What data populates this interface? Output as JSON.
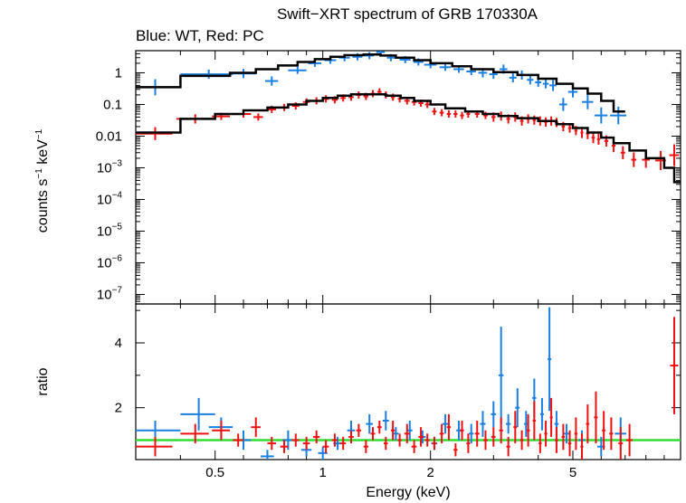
{
  "title": "Swift−XRT spectrum of GRB 170330A",
  "subtitle": "Blue: WT, Red: PC",
  "colors": {
    "wt": "#1a7fe0",
    "pc": "#ee1111",
    "model": "#000000",
    "unity": "#33dd33"
  },
  "chart_data": [
    {
      "type": "scatter",
      "panel": "spectrum",
      "ylabel_html": {
        "base": "counts s",
        "sup1": "−1",
        "mid": " keV",
        "sup2": "−1"
      },
      "xscale": "log",
      "yscale": "log",
      "xlim": [
        0.3,
        10
      ],
      "ylim": [
        5e-08,
        5
      ],
      "yticks": [
        {
          "v": 1,
          "label": "1"
        },
        {
          "v": 0.1,
          "label": "0.1"
        },
        {
          "v": 0.01,
          "label": "0.01"
        },
        {
          "v": 0.001,
          "base": "10",
          "exp": "−3"
        },
        {
          "v": 0.0001,
          "base": "10",
          "exp": "−4"
        },
        {
          "v": 1e-05,
          "base": "10",
          "exp": "−5"
        },
        {
          "v": 1e-06,
          "base": "10",
          "exp": "−6"
        },
        {
          "v": 1e-07,
          "base": "10",
          "exp": "−7"
        }
      ],
      "series": [
        {
          "key": "wt",
          "x": [
            0.34,
            0.48,
            0.6,
            0.72,
            0.85,
            0.95,
            1.05,
            1.15,
            1.25,
            1.35,
            1.45,
            1.55,
            1.7,
            1.85,
            2.0,
            2.2,
            2.4,
            2.6,
            2.8,
            3.0,
            3.2,
            3.4,
            3.6,
            3.8,
            4.0,
            4.2,
            4.4,
            4.7,
            5.0,
            5.5,
            6.0,
            6.7
          ],
          "y": [
            0.35,
            0.9,
            0.95,
            0.55,
            1.2,
            2.0,
            2.5,
            3.0,
            3.2,
            3.5,
            4.5,
            3.0,
            2.6,
            2.2,
            1.8,
            1.5,
            1.3,
            1.1,
            1.0,
            0.9,
            1.3,
            0.7,
            0.85,
            0.6,
            0.5,
            0.45,
            0.4,
            0.1,
            0.25,
            0.12,
            0.045,
            0.045
          ],
          "xerr": [
            0.06,
            0.08,
            0.05,
            0.03,
            0.05,
            0.04,
            0.04,
            0.04,
            0.04,
            0.04,
            0.04,
            0.04,
            0.06,
            0.06,
            0.08,
            0.08,
            0.08,
            0.08,
            0.08,
            0.08,
            0.08,
            0.08,
            0.08,
            0.08,
            0.08,
            0.08,
            0.1,
            0.12,
            0.15,
            0.2,
            0.25,
            0.35
          ],
          "yfac": [
            1.8,
            1.4,
            1.4,
            1.4,
            1.3,
            1.3,
            1.3,
            1.3,
            1.3,
            1.3,
            1.3,
            1.3,
            1.3,
            1.3,
            1.3,
            1.3,
            1.3,
            1.3,
            1.4,
            1.4,
            1.4,
            1.4,
            1.4,
            1.4,
            1.4,
            1.4,
            1.5,
            1.6,
            1.5,
            1.7,
            1.8,
            1.9
          ]
        },
        {
          "key": "pc",
          "x": [
            0.34,
            0.44,
            0.52,
            0.6,
            0.66,
            0.72,
            0.78,
            0.84,
            0.9,
            0.96,
            1.02,
            1.08,
            1.14,
            1.2,
            1.26,
            1.32,
            1.38,
            1.44,
            1.5,
            1.57,
            1.64,
            1.72,
            1.8,
            1.88,
            1.96,
            2.05,
            2.15,
            2.25,
            2.35,
            2.45,
            2.55,
            2.7,
            2.85,
            3.0,
            3.15,
            3.3,
            3.45,
            3.6,
            3.75,
            3.9,
            4.05,
            4.2,
            4.35,
            4.5,
            4.7,
            4.9,
            5.1,
            5.3,
            5.5,
            5.7,
            5.9,
            6.2,
            6.5,
            6.9,
            7.4,
            8.0,
            8.8,
            9.6
          ],
          "y": [
            0.012,
            0.035,
            0.042,
            0.05,
            0.04,
            0.07,
            0.08,
            0.09,
            0.12,
            0.13,
            0.15,
            0.14,
            0.16,
            0.17,
            0.2,
            0.18,
            0.22,
            0.25,
            0.2,
            0.17,
            0.15,
            0.13,
            0.12,
            0.11,
            0.1,
            0.06,
            0.055,
            0.05,
            0.05,
            0.045,
            0.05,
            0.05,
            0.045,
            0.04,
            0.043,
            0.035,
            0.04,
            0.03,
            0.035,
            0.032,
            0.03,
            0.028,
            0.03,
            0.027,
            0.02,
            0.018,
            0.015,
            0.013,
            0.012,
            0.009,
            0.008,
            0.007,
            0.005,
            0.003,
            0.0018,
            0.0018,
            0.0017,
            0.0025
          ],
          "xerr": [
            0.04,
            0.05,
            0.03,
            0.03,
            0.02,
            0.02,
            0.02,
            0.02,
            0.02,
            0.02,
            0.02,
            0.02,
            0.02,
            0.02,
            0.02,
            0.02,
            0.02,
            0.02,
            0.02,
            0.02,
            0.02,
            0.03,
            0.03,
            0.03,
            0.03,
            0.03,
            0.03,
            0.03,
            0.03,
            0.03,
            0.03,
            0.04,
            0.04,
            0.04,
            0.04,
            0.04,
            0.04,
            0.04,
            0.04,
            0.04,
            0.04,
            0.04,
            0.04,
            0.05,
            0.05,
            0.05,
            0.05,
            0.05,
            0.06,
            0.06,
            0.06,
            0.08,
            0.08,
            0.1,
            0.12,
            0.2,
            0.3,
            0.3
          ],
          "yfac": [
            1.6,
            1.4,
            1.3,
            1.3,
            1.3,
            1.3,
            1.3,
            1.3,
            1.3,
            1.3,
            1.3,
            1.3,
            1.3,
            1.3,
            1.3,
            1.3,
            1.3,
            1.3,
            1.3,
            1.3,
            1.3,
            1.3,
            1.3,
            1.3,
            1.3,
            1.3,
            1.3,
            1.3,
            1.3,
            1.3,
            1.3,
            1.3,
            1.3,
            1.4,
            1.4,
            1.4,
            1.4,
            1.4,
            1.4,
            1.4,
            1.4,
            1.4,
            1.4,
            1.4,
            1.4,
            1.4,
            1.4,
            1.5,
            1.5,
            1.5,
            1.5,
            1.5,
            1.6,
            1.6,
            1.7,
            1.8,
            2.0,
            2.2
          ]
        }
      ],
      "model_steps": [
        {
          "key": "wt",
          "edges": [
            0.3,
            0.4,
            0.55,
            0.65,
            0.75,
            0.85,
            0.95,
            1.05,
            1.15,
            1.3,
            1.45,
            1.6,
            1.8,
            2.0,
            2.3,
            2.6,
            3.0,
            3.5,
            4.0,
            4.5,
            5.0,
            5.5,
            6.0,
            6.5,
            7.0
          ],
          "values": [
            0.35,
            0.8,
            1.0,
            1.3,
            1.7,
            2.2,
            2.7,
            3.2,
            3.6,
            3.8,
            3.5,
            3.0,
            2.5,
            2.0,
            1.6,
            1.3,
            1.05,
            0.85,
            0.65,
            0.45,
            0.32,
            0.22,
            0.13,
            0.06
          ]
        },
        {
          "key": "pc",
          "edges": [
            0.3,
            0.4,
            0.5,
            0.6,
            0.7,
            0.8,
            0.9,
            1.0,
            1.1,
            1.2,
            1.35,
            1.5,
            1.65,
            1.8,
            2.0,
            2.2,
            2.5,
            2.8,
            3.1,
            3.5,
            4.0,
            4.5,
            5.0,
            5.5,
            6.0,
            6.5,
            7.2,
            8.0,
            9.0,
            9.6,
            10
          ],
          "values": [
            0.013,
            0.035,
            0.05,
            0.065,
            0.08,
            0.1,
            0.13,
            0.16,
            0.19,
            0.21,
            0.21,
            0.19,
            0.16,
            0.13,
            0.1,
            0.075,
            0.06,
            0.05,
            0.043,
            0.037,
            0.03,
            0.024,
            0.018,
            0.013,
            0.009,
            0.006,
            0.0035,
            0.002,
            0.001,
            0.00035
          ]
        }
      ]
    },
    {
      "type": "scatter",
      "panel": "ratio",
      "xlabel": "Energy (keV)",
      "ylabel": "ratio",
      "xscale": "log",
      "xlim": [
        0.3,
        10
      ],
      "ylim": [
        0.4,
        5.2
      ],
      "xticks": [
        {
          "v": 0.5,
          "label": "0.5"
        },
        {
          "v": 1,
          "label": "1"
        },
        {
          "v": 2,
          "label": "2"
        },
        {
          "v": 5,
          "label": "5"
        }
      ],
      "yticks": [
        {
          "v": 2,
          "label": "2"
        },
        {
          "v": 4,
          "label": "4"
        }
      ],
      "unity": 1,
      "series": [
        {
          "key": "wt",
          "x": [
            0.34,
            0.45,
            0.52,
            0.6,
            0.7,
            0.8,
            0.9,
            1.0,
            1.1,
            1.2,
            1.35,
            1.5,
            1.6,
            1.75,
            1.9,
            2.05,
            2.2,
            2.4,
            2.6,
            2.8,
            3.0,
            3.15,
            3.3,
            3.5,
            3.7,
            3.9,
            4.1,
            4.3,
            4.5,
            4.8,
            5.3,
            6.0,
            6.8
          ],
          "y": [
            1.3,
            1.8,
            1.4,
            1.0,
            0.5,
            1.0,
            0.7,
            0.6,
            0.9,
            1.3,
            1.5,
            1.6,
            1.2,
            1.3,
            1.1,
            0.9,
            1.5,
            1.3,
            1.2,
            1.5,
            1.8,
            3.0,
            1.5,
            2.0,
            1.5,
            2.3,
            1.8,
            3.5,
            1.5,
            1.2,
            1.0,
            0.8,
            1.2
          ],
          "xerr": [
            0.06,
            0.05,
            0.04,
            0.03,
            0.03,
            0.03,
            0.03,
            0.03,
            0.03,
            0.03,
            0.03,
            0.03,
            0.03,
            0.03,
            0.04,
            0.04,
            0.04,
            0.04,
            0.04,
            0.05,
            0.05,
            0.05,
            0.05,
            0.05,
            0.05,
            0.05,
            0.05,
            0.05,
            0.06,
            0.08,
            0.1,
            0.15,
            0.25
          ],
          "yerr": [
            0.3,
            0.5,
            0.3,
            0.3,
            0.2,
            0.3,
            0.2,
            0.2,
            0.2,
            0.3,
            0.3,
            0.3,
            0.2,
            0.3,
            0.2,
            0.2,
            0.3,
            0.3,
            0.3,
            0.4,
            0.4,
            1.5,
            0.3,
            0.6,
            0.4,
            0.6,
            0.5,
            1.6,
            0.4,
            0.3,
            0.3,
            0.3,
            0.5
          ]
        },
        {
          "key": "pc",
          "x": [
            0.34,
            0.44,
            0.52,
            0.58,
            0.65,
            0.72,
            0.78,
            0.84,
            0.9,
            0.96,
            1.02,
            1.08,
            1.14,
            1.2,
            1.26,
            1.32,
            1.38,
            1.44,
            1.5,
            1.57,
            1.64,
            1.72,
            1.8,
            1.88,
            1.96,
            2.05,
            2.15,
            2.25,
            2.35,
            2.45,
            2.55,
            2.7,
            2.85,
            3.0,
            3.15,
            3.3,
            3.45,
            3.6,
            3.75,
            3.9,
            4.05,
            4.2,
            4.35,
            4.5,
            4.7,
            4.9,
            5.1,
            5.3,
            5.5,
            5.8,
            6.1,
            6.4,
            6.8,
            7.2,
            9.6
          ],
          "y": [
            0.8,
            1.2,
            1.3,
            1.0,
            1.4,
            0.9,
            0.8,
            1.0,
            0.9,
            1.1,
            0.8,
            1.0,
            0.9,
            1.1,
            1.3,
            0.8,
            1.2,
            1.4,
            0.9,
            1.3,
            1.0,
            1.2,
            0.8,
            1.1,
            1.0,
            0.9,
            1.2,
            1.4,
            0.7,
            1.3,
            0.9,
            1.2,
            1.0,
            1.1,
            1.3,
            0.8,
            1.4,
            1.0,
            1.3,
            1.6,
            0.9,
            1.2,
            1.7,
            1.0,
            1.1,
            0.9,
            1.2,
            0.8,
            1.5,
            1.7,
            1.3,
            1.2,
            0.9,
            1.0,
            3.3
          ],
          "xerr": [
            0.04,
            0.04,
            0.03,
            0.02,
            0.02,
            0.02,
            0.02,
            0.02,
            0.02,
            0.02,
            0.02,
            0.02,
            0.02,
            0.02,
            0.02,
            0.02,
            0.02,
            0.02,
            0.02,
            0.02,
            0.02,
            0.03,
            0.03,
            0.03,
            0.03,
            0.03,
            0.03,
            0.03,
            0.03,
            0.03,
            0.03,
            0.04,
            0.04,
            0.04,
            0.04,
            0.04,
            0.04,
            0.04,
            0.04,
            0.04,
            0.04,
            0.04,
            0.04,
            0.05,
            0.05,
            0.05,
            0.05,
            0.05,
            0.06,
            0.07,
            0.07,
            0.08,
            0.1,
            0.15,
            0.25
          ],
          "yerr": [
            0.3,
            0.3,
            0.3,
            0.2,
            0.3,
            0.2,
            0.2,
            0.2,
            0.2,
            0.2,
            0.2,
            0.2,
            0.2,
            0.2,
            0.2,
            0.2,
            0.2,
            0.2,
            0.2,
            0.3,
            0.2,
            0.3,
            0.2,
            0.3,
            0.2,
            0.2,
            0.3,
            0.4,
            0.2,
            0.3,
            0.3,
            0.4,
            0.3,
            0.3,
            0.4,
            0.3,
            0.5,
            0.3,
            0.5,
            0.6,
            0.3,
            0.4,
            0.6,
            0.4,
            0.4,
            0.4,
            0.5,
            0.4,
            0.6,
            0.8,
            0.6,
            0.5,
            0.5,
            0.5,
            1.5
          ]
        }
      ]
    }
  ]
}
